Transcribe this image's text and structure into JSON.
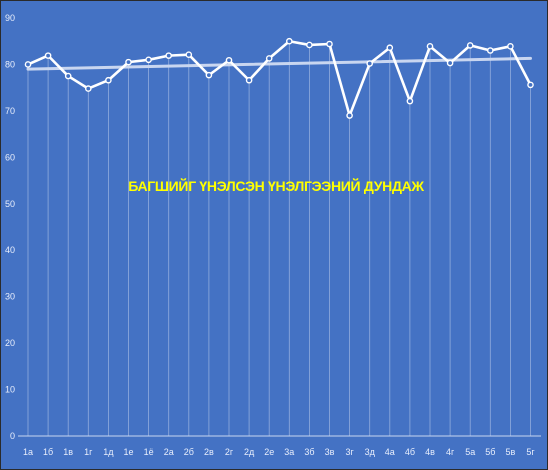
{
  "chart_data": {
    "type": "line",
    "title": "БАГШИЙГ ҮНЭЛСЭН ҮНЭЛГЭЭНИЙ ДУНДАЖ",
    "xlabel": "",
    "ylabel": "",
    "ylim": [
      0,
      90
    ],
    "yticks": [
      0,
      10,
      20,
      30,
      40,
      50,
      60,
      70,
      80,
      90
    ],
    "grid": "vertical",
    "legend": "none",
    "categories": [
      "1а",
      "1б",
      "1в",
      "1г",
      "1д",
      "1е",
      "1ё",
      "2а",
      "2б",
      "2в",
      "2г",
      "2д",
      "2е",
      "3а",
      "3б",
      "3в",
      "3г",
      "3д",
      "4а",
      "4б",
      "4в",
      "4г",
      "5а",
      "5б",
      "5в",
      "5г"
    ],
    "series": [
      {
        "values": [
          80.0,
          81.9,
          77.5,
          74.8,
          76.6,
          80.5,
          81.0,
          81.9,
          82.1,
          77.7,
          80.9,
          76.6,
          81.3,
          85.0,
          84.2,
          84.4,
          69.0,
          80.2,
          83.6,
          72.1,
          83.9,
          80.3,
          84.1,
          83.0,
          83.9,
          75.6
        ]
      }
    ],
    "trendline": {
      "start": 79.0,
      "end": 81.3
    },
    "colors": {
      "background": "#4472c4",
      "line": "#ffffff",
      "trendline": "#c9d6f0",
      "title": "#ffff00"
    }
  }
}
